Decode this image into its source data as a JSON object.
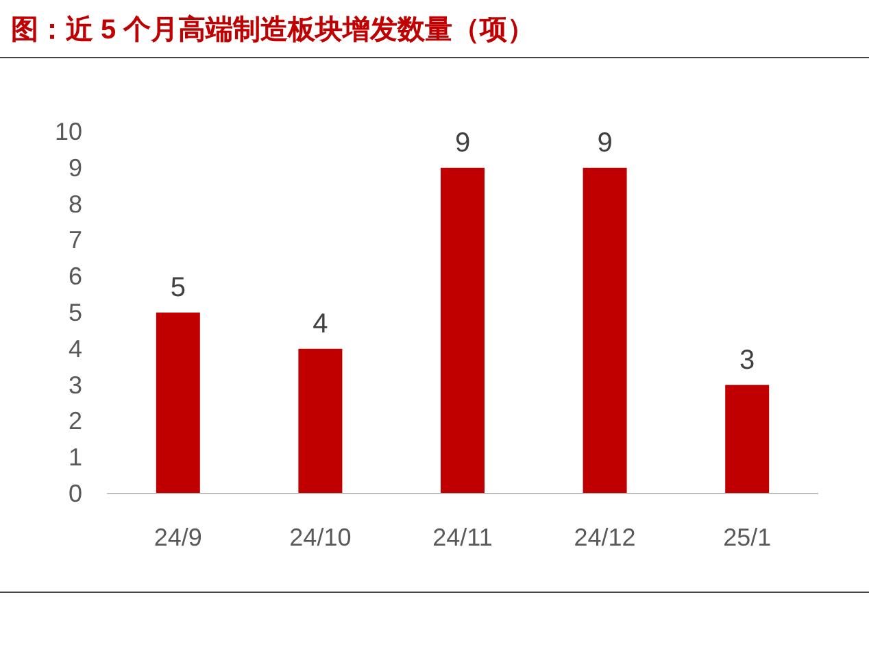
{
  "chart_data": {
    "type": "bar",
    "title": "图：近 5 个月高端制造板块增发数量（项）",
    "categories": [
      "24/9",
      "24/10",
      "24/11",
      "24/12",
      "25/1"
    ],
    "values": [
      5,
      4,
      9,
      9,
      3
    ],
    "color": "#c00000",
    "ylim": [
      0,
      10
    ],
    "yticks": [
      0,
      1,
      2,
      3,
      4,
      5,
      6,
      7,
      8,
      9,
      10
    ],
    "data_labels": true
  }
}
